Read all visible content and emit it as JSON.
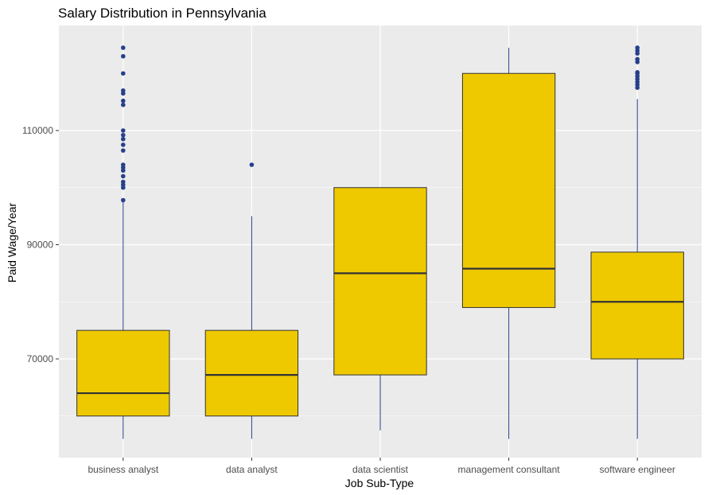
{
  "chart_data": {
    "type": "boxplot",
    "title": "Salary Distribution in Pennsylvania",
    "xlabel": "Job Sub-Type",
    "ylabel": "Paid Wage/Year",
    "ylim": [
      53000,
      117000
    ],
    "yticks": [
      70000,
      90000,
      110000
    ],
    "ytick_labels": [
      "70000",
      "90000",
      "110000"
    ],
    "grid": true,
    "legend": "none",
    "colors": {
      "panel": "#ebebeb",
      "grid": "#ffffff",
      "box_fill": "#eec900",
      "box_line": "#333333",
      "whisker": "#27408b",
      "outlier": "#27408b"
    },
    "categories": [
      "business analyst",
      "data analyst",
      "data scientist",
      "management consultant",
      "software engineer"
    ],
    "boxes": [
      {
        "category": "business analyst",
        "min": 56000,
        "q1": 60000,
        "median": 64000,
        "q3": 75000,
        "max": 97500,
        "outliers": [
          97800,
          100000,
          100500,
          101000,
          102000,
          103000,
          103500,
          104000,
          106500,
          107500,
          108500,
          109200,
          110000,
          114500,
          115200,
          116500,
          117000,
          120000,
          123000,
          124500
        ]
      },
      {
        "category": "data analyst",
        "min": 56000,
        "q1": 60000,
        "median": 67200,
        "q3": 75000,
        "max": 95000,
        "outliers": [
          104000
        ]
      },
      {
        "category": "data scientist",
        "min": 57500,
        "q1": 67200,
        "median": 85000,
        "q3": 100000,
        "max": 100000,
        "outliers": []
      },
      {
        "category": "management consultant",
        "min": 56000,
        "q1": 79000,
        "median": 85800,
        "q3": 120000,
        "max": 124500,
        "outliers": []
      },
      {
        "category": "software engineer",
        "min": 56000,
        "q1": 70000,
        "median": 80000,
        "q3": 88700,
        "max": 115500,
        "outliers": [
          117500,
          118000,
          118500,
          119000,
          119500,
          120000,
          120200,
          122000,
          122500,
          123500,
          124000,
          124500
        ]
      }
    ]
  }
}
